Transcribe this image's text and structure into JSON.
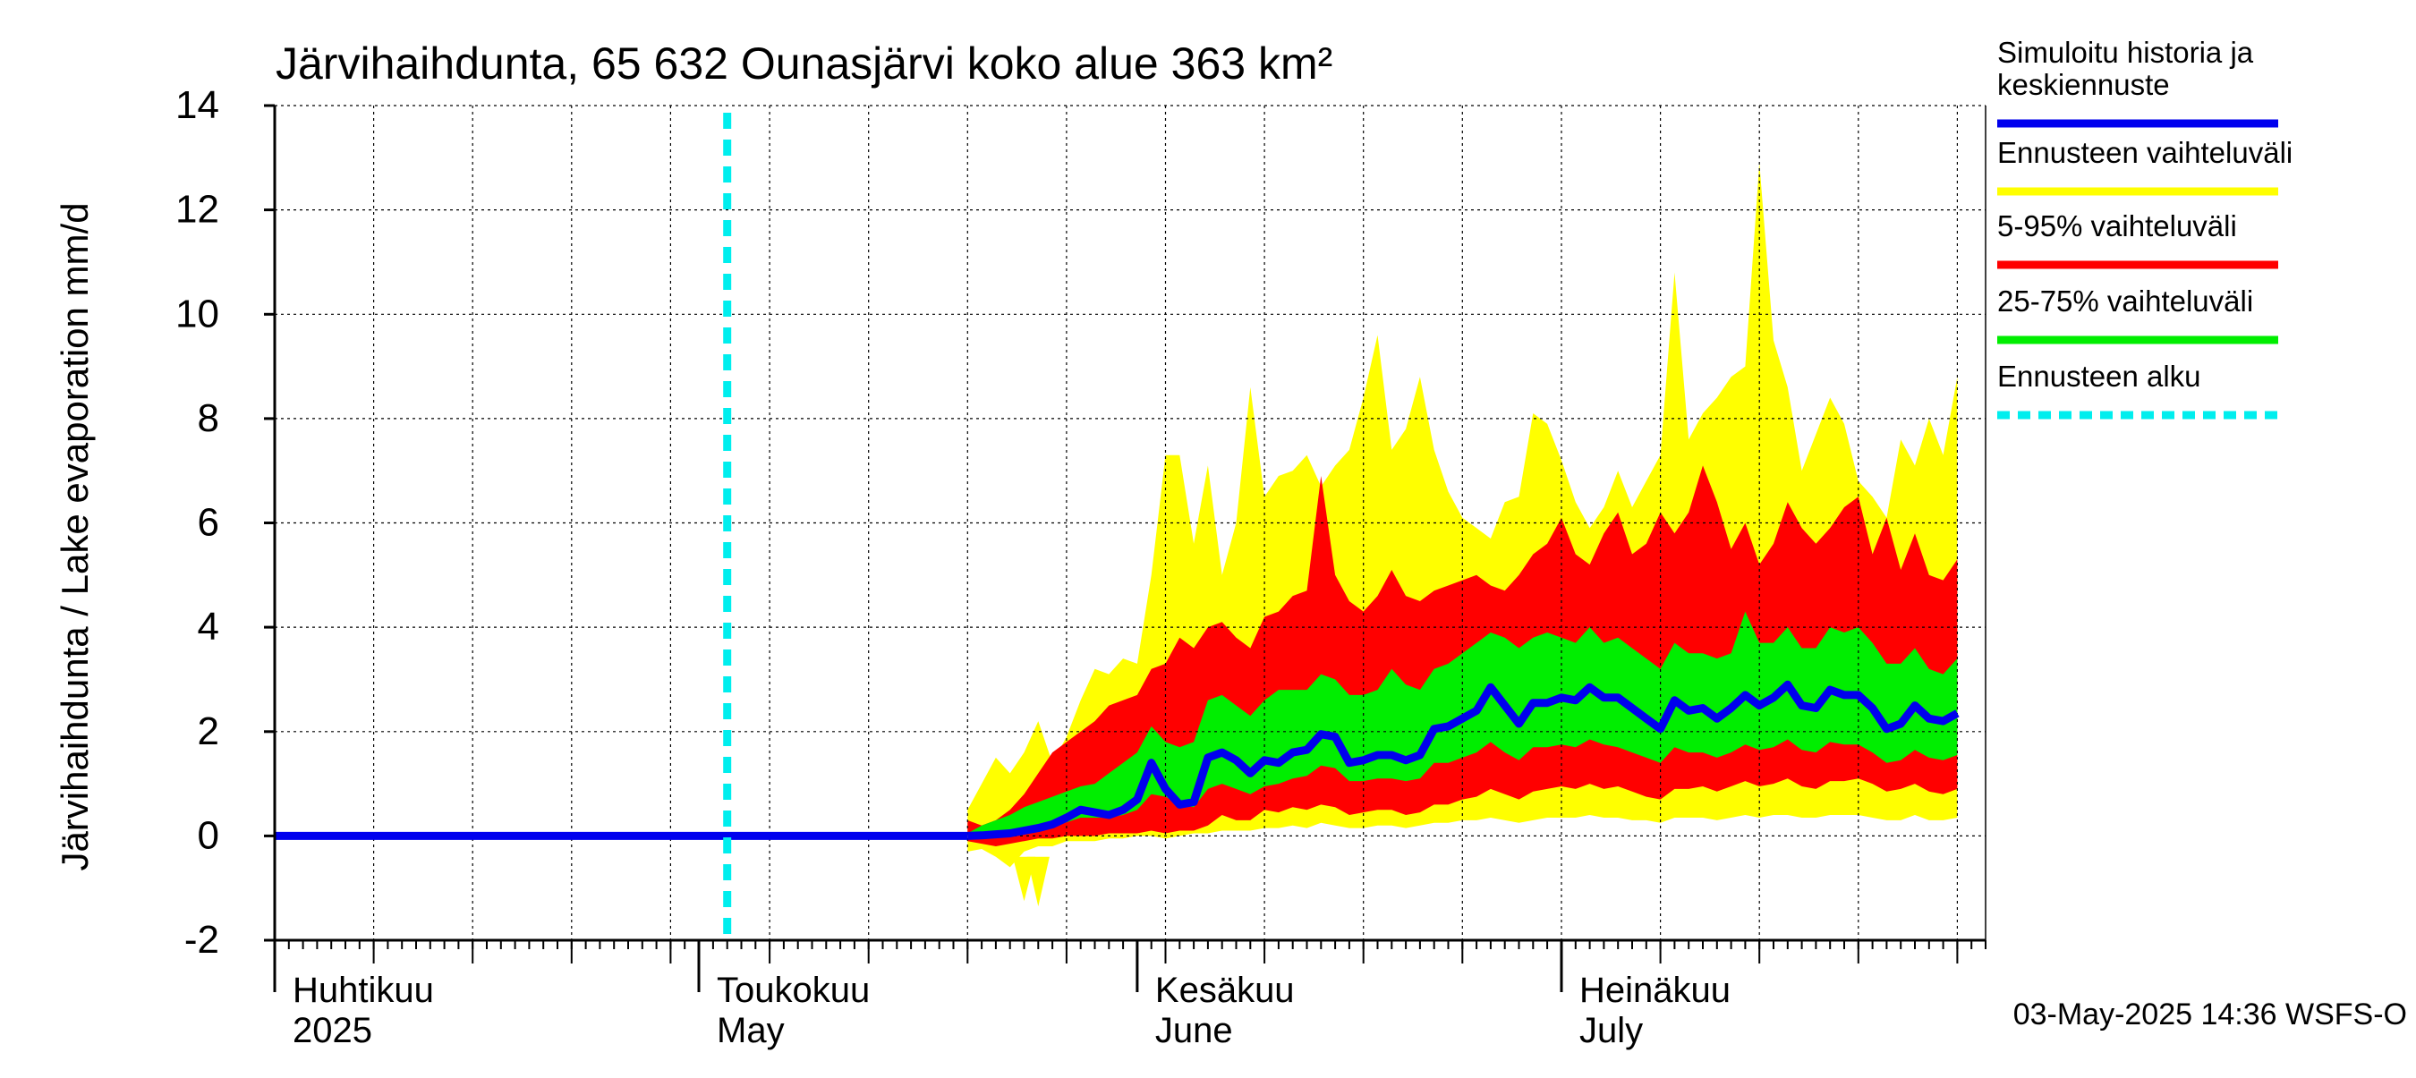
{
  "chart_data": {
    "type": "area",
    "title": "Järvihaihdunta, 65 632 Ounasjärvi koko alue 363 km²",
    "ylabel": "Järvihaihdunta / Lake evaporation   mm/d",
    "ylim": [
      -2,
      14
    ],
    "yticks": [
      -2,
      0,
      2,
      4,
      6,
      8,
      10,
      12,
      14
    ],
    "ytick_labels": [
      "-2",
      "0",
      "2",
      "4",
      "6",
      "8",
      "10",
      "12",
      "14"
    ],
    "xlim": [
      "2025-04-01",
      "2025-07-31"
    ],
    "month_labels": [
      {
        "date": "2025-04-01",
        "fi": "Huhtikuu",
        "en": "2025"
      },
      {
        "date": "2025-05-01",
        "fi": "Toukokuu",
        "en": "May"
      },
      {
        "date": "2025-06-01",
        "fi": "Kesäkuu",
        "en": "June"
      },
      {
        "date": "2025-07-01",
        "fi": "Heinäkuu",
        "en": "July"
      }
    ],
    "grid": true,
    "legend_position": "right",
    "legend": [
      {
        "label": "Simuloitu historia ja keskiennuste",
        "color": "#0000ee",
        "style": "line"
      },
      {
        "label": "Ennusteen vaihteluväli",
        "color": "#ffff00",
        "style": "band"
      },
      {
        "label": "5-95% vaihteluväli",
        "color": "#ff0000",
        "style": "band"
      },
      {
        "label": "25-75% vaihteluväli",
        "color": "#00ee00",
        "style": "band"
      },
      {
        "label": "Ennusteen alku",
        "color": "#00eeee",
        "style": "dashed"
      }
    ],
    "forecast_start": "2025-05-03",
    "series": {
      "dates_start": "2025-05-20",
      "median": [
        0.0,
        0.01,
        0.03,
        0.05,
        0.1,
        0.15,
        0.22,
        0.35,
        0.5,
        0.45,
        0.4,
        0.5,
        0.7,
        1.4,
        0.9,
        0.6,
        0.65,
        1.5,
        1.6,
        1.45,
        1.2,
        1.45,
        1.4,
        1.6,
        1.65,
        1.95,
        1.9,
        1.4,
        1.45,
        1.55,
        1.55,
        1.45,
        1.55,
        2.05,
        2.1,
        2.25,
        2.4,
        2.85,
        2.5,
        2.15,
        2.55,
        2.55,
        2.65,
        2.6,
        2.85,
        2.65,
        2.65,
        2.45,
        2.25,
        2.05,
        2.6,
        2.4,
        2.45,
        2.25,
        2.45,
        2.7,
        2.5,
        2.65,
        2.9,
        2.5,
        2.45,
        2.8,
        2.7,
        2.7,
        2.45,
        2.05,
        2.15,
        2.5,
        2.25,
        2.2,
        2.35
      ],
      "p25": [
        0.0,
        0.01,
        0.02,
        0.04,
        0.08,
        0.12,
        0.18,
        0.26,
        0.35,
        0.35,
        0.35,
        0.4,
        0.5,
        0.8,
        0.75,
        0.6,
        0.55,
        0.9,
        1.0,
        0.9,
        0.8,
        0.95,
        1.0,
        1.1,
        1.15,
        1.35,
        1.3,
        1.05,
        1.05,
        1.1,
        1.1,
        1.05,
        1.1,
        1.4,
        1.4,
        1.5,
        1.6,
        1.8,
        1.6,
        1.45,
        1.7,
        1.7,
        1.75,
        1.7,
        1.85,
        1.75,
        1.7,
        1.6,
        1.5,
        1.4,
        1.7,
        1.6,
        1.6,
        1.5,
        1.6,
        1.75,
        1.65,
        1.7,
        1.85,
        1.65,
        1.6,
        1.8,
        1.75,
        1.75,
        1.6,
        1.4,
        1.45,
        1.65,
        1.5,
        1.45,
        1.55
      ],
      "p75": [
        0.05,
        0.2,
        0.3,
        0.4,
        0.55,
        0.65,
        0.75,
        0.85,
        0.95,
        1.0,
        1.2,
        1.4,
        1.6,
        2.1,
        1.8,
        1.7,
        1.8,
        2.6,
        2.7,
        2.5,
        2.3,
        2.6,
        2.8,
        2.8,
        2.8,
        3.1,
        3.0,
        2.7,
        2.7,
        2.8,
        3.2,
        2.9,
        2.8,
        3.2,
        3.3,
        3.5,
        3.7,
        3.9,
        3.8,
        3.6,
        3.8,
        3.9,
        3.8,
        3.7,
        4.0,
        3.7,
        3.8,
        3.6,
        3.4,
        3.2,
        3.7,
        3.5,
        3.5,
        3.4,
        3.5,
        4.3,
        3.7,
        3.7,
        4.0,
        3.6,
        3.6,
        4.0,
        3.9,
        4.0,
        3.7,
        3.3,
        3.3,
        3.6,
        3.2,
        3.1,
        3.4
      ],
      "p05": [
        -0.1,
        -0.15,
        -0.2,
        -0.15,
        -0.1,
        -0.05,
        -0.05,
        0.0,
        0.0,
        0.0,
        0.05,
        0.05,
        0.05,
        0.1,
        0.05,
        0.1,
        0.1,
        0.2,
        0.4,
        0.3,
        0.3,
        0.5,
        0.45,
        0.55,
        0.5,
        0.6,
        0.55,
        0.4,
        0.45,
        0.5,
        0.5,
        0.4,
        0.45,
        0.6,
        0.6,
        0.7,
        0.75,
        0.9,
        0.8,
        0.7,
        0.85,
        0.9,
        0.95,
        0.9,
        1.0,
        0.9,
        0.95,
        0.85,
        0.75,
        0.7,
        0.9,
        0.9,
        0.95,
        0.85,
        0.95,
        1.05,
        0.95,
        1.0,
        1.1,
        0.95,
        0.9,
        1.05,
        1.05,
        1.1,
        1.0,
        0.85,
        0.9,
        1.0,
        0.85,
        0.8,
        0.9
      ],
      "p95": [
        0.3,
        0.2,
        0.3,
        0.5,
        0.8,
        1.2,
        1.6,
        1.8,
        2.0,
        2.2,
        2.5,
        2.6,
        2.7,
        3.2,
        3.3,
        3.8,
        3.6,
        4.0,
        4.1,
        3.8,
        3.6,
        4.2,
        4.3,
        4.6,
        4.7,
        6.9,
        5.0,
        4.5,
        4.3,
        4.6,
        5.1,
        4.6,
        4.5,
        4.7,
        4.8,
        4.9,
        5.0,
        4.8,
        4.7,
        5.0,
        5.4,
        5.6,
        6.1,
        5.4,
        5.2,
        5.8,
        6.2,
        5.4,
        5.6,
        6.2,
        5.8,
        6.2,
        7.1,
        6.4,
        5.5,
        6.0,
        5.2,
        5.6,
        6.4,
        5.9,
        5.6,
        5.9,
        6.3,
        6.5,
        5.4,
        6.1,
        5.1,
        5.8,
        5.0,
        4.9,
        5.3
      ],
      "min": [
        -0.3,
        -0.25,
        -0.4,
        -0.6,
        -0.3,
        -0.2,
        -0.2,
        -0.1,
        -0.1,
        -0.1,
        -0.05,
        -0.05,
        0.0,
        0.0,
        -0.05,
        0.0,
        0.05,
        0.05,
        0.1,
        0.1,
        0.1,
        0.15,
        0.15,
        0.2,
        0.15,
        0.25,
        0.2,
        0.15,
        0.15,
        0.2,
        0.2,
        0.15,
        0.2,
        0.25,
        0.25,
        0.3,
        0.3,
        0.35,
        0.3,
        0.25,
        0.3,
        0.35,
        0.35,
        0.35,
        0.4,
        0.35,
        0.35,
        0.3,
        0.3,
        0.25,
        0.35,
        0.35,
        0.35,
        0.3,
        0.35,
        0.4,
        0.35,
        0.4,
        0.4,
        0.35,
        0.35,
        0.4,
        0.4,
        0.4,
        0.35,
        0.3,
        0.3,
        0.4,
        0.3,
        0.3,
        0.35
      ],
      "max": [
        0.5,
        1.0,
        1.5,
        1.2,
        1.6,
        2.2,
        1.4,
        1.9,
        2.6,
        3.2,
        3.1,
        3.4,
        3.3,
        5.0,
        7.3,
        7.3,
        5.6,
        7.1,
        5.0,
        6.0,
        8.6,
        6.5,
        6.9,
        7.0,
        7.3,
        6.7,
        7.1,
        7.4,
        8.4,
        9.6,
        7.4,
        7.8,
        8.8,
        7.4,
        6.6,
        6.1,
        5.9,
        5.7,
        6.4,
        6.5,
        8.1,
        7.9,
        7.2,
        6.4,
        5.9,
        6.3,
        7.0,
        6.3,
        6.8,
        7.3,
        10.8,
        7.6,
        8.1,
        8.4,
        8.8,
        9.0,
        12.9,
        9.5,
        8.6,
        7.0,
        7.7,
        8.4,
        7.9,
        6.8,
        6.5,
        6.1,
        7.6,
        7.1,
        8.0,
        7.3,
        8.8
      ],
      "min_outliers": [
        {
          "date": "2025-05-24",
          "value": -1.25
        },
        {
          "date": "2025-05-25",
          "value": -1.35
        }
      ]
    }
  },
  "footer": {
    "timestamp": "03-May-2025 14:36 WSFS-O"
  }
}
